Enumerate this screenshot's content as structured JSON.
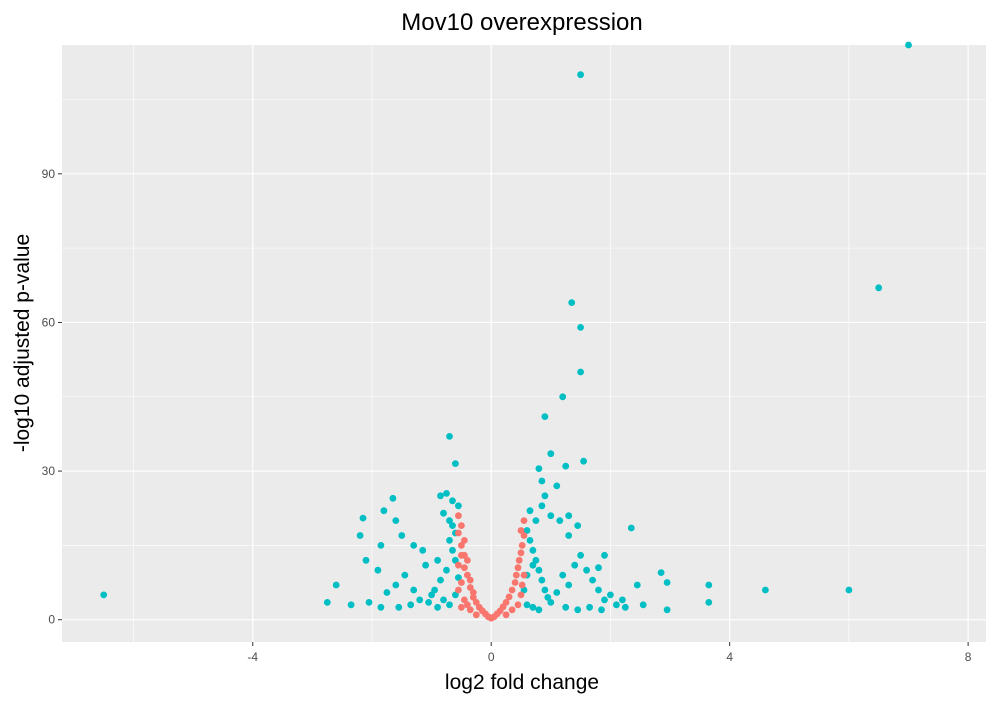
{
  "chart_data": {
    "type": "scatter",
    "title": "Mov10 overexpression",
    "xlabel": "log2 fold change",
    "ylabel": "-log10 adjusted p-value",
    "xlim": [
      -7.2,
      8.3
    ],
    "ylim": [
      -4.5,
      116
    ],
    "x_ticks": [
      -4,
      0,
      4,
      8
    ],
    "x_tick_labels": [
      "-4",
      "0",
      "4",
      "8"
    ],
    "y_ticks": [
      0,
      30,
      60,
      90
    ],
    "y_tick_labels": [
      "0",
      "30",
      "60",
      "90"
    ],
    "grid": true,
    "legend": "none",
    "colors": {
      "panel_bg": "#EBEBEB",
      "grid": "#FFFFFF",
      "significant": "#00BFC4",
      "not_significant": "#F8766D"
    },
    "series": [
      {
        "color": "#00BFC4",
        "points": [
          [
            7.0,
            116
          ],
          [
            1.5,
            110
          ],
          [
            6.5,
            67
          ],
          [
            1.35,
            64
          ],
          [
            1.5,
            59
          ],
          [
            1.5,
            50
          ],
          [
            1.2,
            45
          ],
          [
            0.9,
            41
          ],
          [
            -0.7,
            37
          ],
          [
            1.0,
            33.5
          ],
          [
            -0.6,
            31.5
          ],
          [
            1.25,
            31
          ],
          [
            1.55,
            32
          ],
          [
            0.8,
            30.5
          ],
          [
            0.85,
            28
          ],
          [
            1.1,
            27
          ],
          [
            -0.85,
            25
          ],
          [
            -0.75,
            25.5
          ],
          [
            -0.65,
            24
          ],
          [
            -1.65,
            24.5
          ],
          [
            -0.55,
            23
          ],
          [
            -0.7,
            20
          ],
          [
            -0.8,
            21.5
          ],
          [
            -1.8,
            22
          ],
          [
            -2.15,
            20.5
          ],
          [
            -2.2,
            17
          ],
          [
            -1.6,
            20
          ],
          [
            -1.5,
            17
          ],
          [
            -1.85,
            15
          ],
          [
            -1.3,
            15
          ],
          [
            -1.15,
            14
          ],
          [
            -0.9,
            12
          ],
          [
            -1.1,
            11
          ],
          [
            -1.9,
            10
          ],
          [
            -2.1,
            12
          ],
          [
            -1.45,
            9
          ],
          [
            -1.6,
            7
          ],
          [
            -1.3,
            6
          ],
          [
            -1.75,
            5.5
          ],
          [
            -1.35,
            3
          ],
          [
            -2.05,
            3.5
          ],
          [
            -1.85,
            2.5
          ],
          [
            -2.6,
            7
          ],
          [
            -2.75,
            3.5
          ],
          [
            -2.35,
            3
          ],
          [
            -1.2,
            4
          ],
          [
            -1.0,
            5
          ],
          [
            -0.7,
            16
          ],
          [
            -0.65,
            14
          ],
          [
            -0.6,
            12
          ],
          [
            -0.75,
            10
          ],
          [
            -0.85,
            8
          ],
          [
            -0.95,
            6
          ],
          [
            -0.6,
            5
          ],
          [
            -0.8,
            4
          ],
          [
            -0.7,
            3
          ],
          [
            -0.9,
            2.5
          ],
          [
            -1.05,
            3.5
          ],
          [
            -1.55,
            2.5
          ],
          [
            -0.65,
            19
          ],
          [
            -0.6,
            17.5
          ],
          [
            -0.55,
            8.5
          ],
          [
            -6.5,
            5
          ],
          [
            0.6,
            18
          ],
          [
            0.65,
            16
          ],
          [
            0.7,
            14
          ],
          [
            0.75,
            12
          ],
          [
            0.8,
            10
          ],
          [
            0.85,
            8
          ],
          [
            0.9,
            6
          ],
          [
            0.95,
            4.5
          ],
          [
            1.0,
            3.5
          ],
          [
            1.1,
            5.5
          ],
          [
            1.2,
            9
          ],
          [
            1.3,
            7
          ],
          [
            1.4,
            11
          ],
          [
            1.5,
            13
          ],
          [
            1.6,
            10
          ],
          [
            1.7,
            8
          ],
          [
            1.8,
            6
          ],
          [
            1.9,
            4
          ],
          [
            2.0,
            5
          ],
          [
            2.1,
            3
          ],
          [
            2.2,
            4
          ],
          [
            0.65,
            22
          ],
          [
            0.75,
            20
          ],
          [
            0.85,
            23
          ],
          [
            0.9,
            25
          ],
          [
            1.0,
            21
          ],
          [
            1.15,
            20
          ],
          [
            1.3,
            21
          ],
          [
            1.45,
            19
          ],
          [
            1.3,
            17
          ],
          [
            0.7,
            11
          ],
          [
            0.6,
            9
          ],
          [
            0.55,
            6
          ],
          [
            0.6,
            3
          ],
          [
            0.7,
            2.5
          ],
          [
            0.8,
            2
          ],
          [
            1.25,
            2.5
          ],
          [
            1.65,
            2.5
          ],
          [
            1.85,
            2
          ],
          [
            2.35,
            18.5
          ],
          [
            1.9,
            13
          ],
          [
            1.8,
            10.5
          ],
          [
            2.85,
            9.5
          ],
          [
            2.95,
            7.5
          ],
          [
            2.45,
            7
          ],
          [
            2.55,
            3
          ],
          [
            2.95,
            2
          ],
          [
            3.65,
            7
          ],
          [
            3.65,
            3.5
          ],
          [
            4.6,
            6
          ],
          [
            6.0,
            6
          ],
          [
            2.25,
            2.5
          ],
          [
            1.45,
            2
          ]
        ]
      },
      {
        "color": "#F8766D",
        "points": [
          [
            -0.55,
            21
          ],
          [
            -0.5,
            19
          ],
          [
            -0.55,
            17.5
          ],
          [
            -0.45,
            16
          ],
          [
            -0.5,
            15
          ],
          [
            -0.45,
            13
          ],
          [
            -0.4,
            12
          ],
          [
            -0.45,
            10.5
          ],
          [
            -0.4,
            9
          ],
          [
            -0.35,
            8
          ],
          [
            -0.35,
            6.5
          ],
          [
            -0.3,
            5.5
          ],
          [
            -0.3,
            4.5
          ],
          [
            -0.25,
            3.5
          ],
          [
            -0.2,
            2.5
          ],
          [
            -0.15,
            1.8
          ],
          [
            -0.1,
            1.2
          ],
          [
            -0.05,
            0.6
          ],
          [
            0.0,
            0.3
          ],
          [
            0.05,
            0.6
          ],
          [
            0.1,
            1.2
          ],
          [
            0.15,
            1.8
          ],
          [
            0.2,
            2.6
          ],
          [
            0.25,
            3.5
          ],
          [
            0.3,
            4.6
          ],
          [
            0.35,
            6
          ],
          [
            0.4,
            7.5
          ],
          [
            0.42,
            9
          ],
          [
            0.45,
            10.5
          ],
          [
            0.47,
            12
          ],
          [
            0.5,
            13.5
          ],
          [
            0.52,
            15
          ],
          [
            0.55,
            17
          ],
          [
            0.55,
            20
          ],
          [
            0.5,
            18
          ],
          [
            -0.5,
            2.5
          ],
          [
            -0.45,
            4
          ],
          [
            -0.4,
            3
          ],
          [
            -0.55,
            6
          ],
          [
            -0.5,
            7.5
          ],
          [
            -0.55,
            11
          ],
          [
            -0.5,
            13
          ],
          [
            0.45,
            3
          ],
          [
            0.5,
            5
          ],
          [
            0.52,
            7
          ],
          [
            0.55,
            9
          ],
          [
            0.35,
            2
          ],
          [
            -0.35,
            2
          ],
          [
            0.25,
            1
          ],
          [
            -0.25,
            1
          ]
        ]
      }
    ]
  }
}
